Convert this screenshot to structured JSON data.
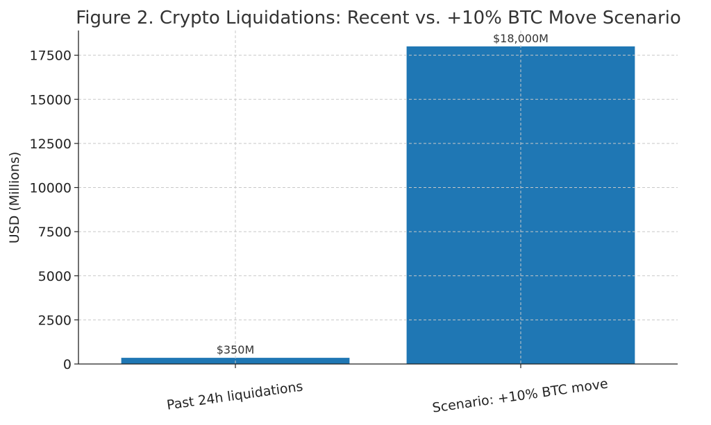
{
  "chart_data": {
    "type": "bar",
    "title": "Figure 2. Crypto Liquidations: Recent vs. +10% BTC Move Scenario",
    "xlabel": "",
    "ylabel": "USD (Millions)",
    "categories": [
      "Past 24h liquidations",
      "Scenario: +10% BTC move"
    ],
    "values": [
      350,
      18000
    ],
    "data_labels": [
      "$350M",
      "$18,000M"
    ],
    "ylim": [
      0,
      18900
    ],
    "yticks": [
      0,
      2500,
      5000,
      7500,
      10000,
      12500,
      15000,
      17500
    ],
    "ytick_labels": [
      "0",
      "2500",
      "5000",
      "7500",
      "10000",
      "12500",
      "15000",
      "17500"
    ],
    "grid": true,
    "legend": "none",
    "bar_color": "#1f77b4",
    "grid_color": "#c8c8c8"
  }
}
